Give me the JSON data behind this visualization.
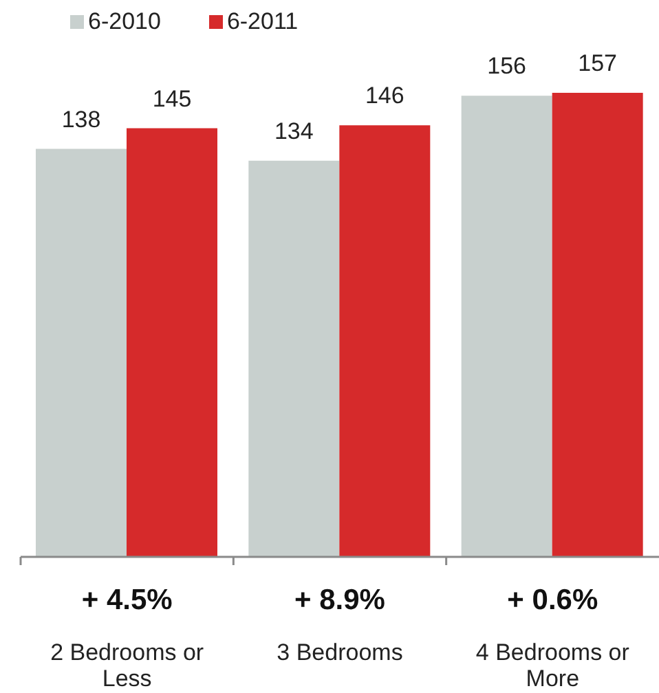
{
  "chart_data": {
    "type": "bar",
    "categories": [
      "2 Bedrooms or Less",
      "3 Bedrooms",
      "4 Bedrooms or More"
    ],
    "series": [
      {
        "name": "6-2010",
        "color": "#c8d0ce",
        "values": [
          138,
          134,
          156
        ]
      },
      {
        "name": "6-2011",
        "color": "#d62a2b",
        "values": [
          145,
          146,
          157
        ]
      }
    ],
    "data_labels": true,
    "legend": "top left",
    "tick_labels": "x",
    "annotations": [
      "+ 4.5%",
      "+ 8.9%",
      "+ 0.6%"
    ]
  }
}
